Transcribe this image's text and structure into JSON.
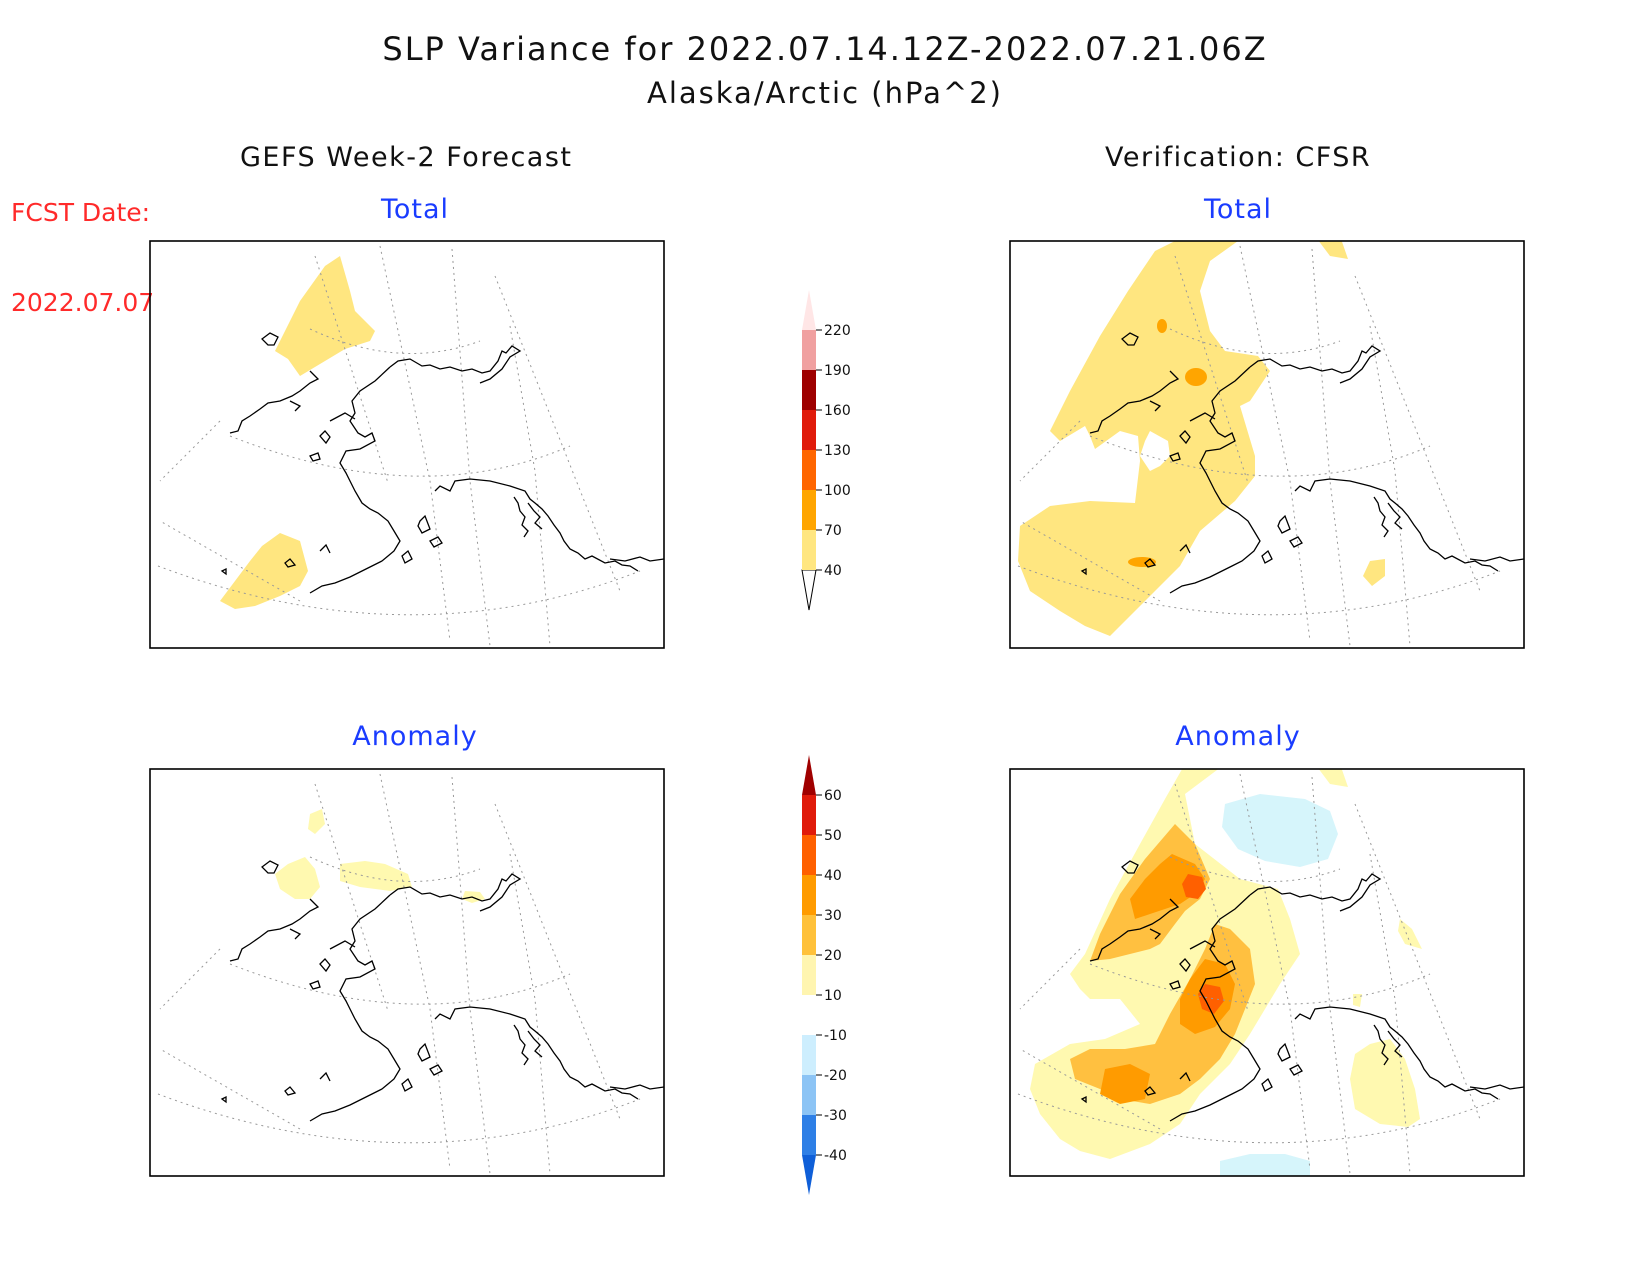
{
  "header": {
    "title": "SLP Variance for 2022.07.14.12Z-2022.07.21.06Z",
    "subtitle": "Alaska/Arctic (hPa^2)"
  },
  "forecast": {
    "label": "FCST Date:",
    "date": "2022.07.07"
  },
  "columns": {
    "left": "GEFS Week-2 Forecast",
    "right": "Verification: CFSR"
  },
  "panels": {
    "top_left": "Total",
    "top_right": "Total",
    "bottom_left": "Anomaly",
    "bottom_right": "Anomaly"
  },
  "colorbars": {
    "total": {
      "labels": [
        "40",
        "70",
        "100",
        "130",
        "160",
        "190",
        "220"
      ],
      "colors": [
        "#ffe680",
        "#ffa500",
        "#ff6600",
        "#e01b0b",
        "#9e0000",
        "#f0a0a0",
        "#ffe6e6"
      ]
    },
    "anomaly": {
      "labels": [
        "-40",
        "-30",
        "-20",
        "-10",
        "10",
        "20",
        "30",
        "40",
        "50",
        "60"
      ],
      "colors": [
        "#0f5fd8",
        "#2e7fe6",
        "#8cc4f5",
        "#cdeefe",
        "#ffffff",
        "#fff5b0",
        "#ffc13a",
        "#ff9b00",
        "#ff6000",
        "#e01b0b",
        "#a00000"
      ]
    }
  },
  "map_fill_colors": {
    "light_yellow": "#ffe680",
    "orange": "#ffa500",
    "anomaly_pale": "#fff9b0",
    "anomaly_gold": "#ffc040",
    "anomaly_orange": "#ff9b00",
    "anomaly_red_orange": "#ff6000",
    "anomaly_light_blue": "#d6f5fb"
  }
}
